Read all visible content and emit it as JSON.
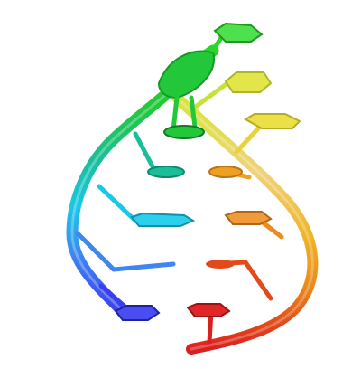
{
  "image": {
    "background": "#ffffff",
    "subject": "double-helix-cartoon",
    "palette": {
      "blue": "#3a3ef0",
      "cyan": "#19c8e8",
      "teal": "#1abf9a",
      "green": "#22c83a",
      "yellow_green": "#b8e23a",
      "yellow": "#e8e23a",
      "gold": "#f0b428",
      "orange": "#ec8a1a",
      "red_orange": "#e24a1a",
      "red": "#dc1e1e"
    }
  }
}
